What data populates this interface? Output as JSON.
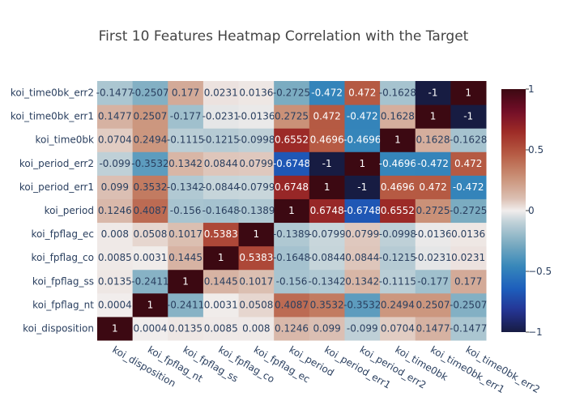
{
  "chart_data": {
    "type": "heatmap",
    "title": "First 10 Features Heatmap Correlation with the Target",
    "x": [
      "koi_disposition",
      "koi_fpflag_nt",
      "koi_fpflag_ss",
      "koi_fpflag_co",
      "koi_fpflag_ec",
      "koi_period",
      "koi_period_err1",
      "koi_period_err2",
      "koi_time0bk",
      "koi_time0bk_err1",
      "koi_time0bk_err2"
    ],
    "y": [
      "koi_disposition",
      "koi_fpflag_nt",
      "koi_fpflag_ss",
      "koi_fpflag_co",
      "koi_fpflag_ec",
      "koi_period",
      "koi_period_err1",
      "koi_period_err2",
      "koi_time0bk",
      "koi_time0bk_err1",
      "koi_time0bk_err2"
    ],
    "z": [
      [
        1,
        0.0004,
        0.0135,
        0.0085,
        0.008,
        0.1246,
        0.099,
        -0.099,
        0.0704,
        0.1477,
        -0.1477
      ],
      [
        0.0004,
        1,
        -0.2411,
        0.0031,
        0.0508,
        0.4087,
        0.3532,
        -0.3532,
        0.2494,
        0.2507,
        -0.2507
      ],
      [
        0.0135,
        -0.2411,
        1,
        0.1445,
        0.1017,
        -0.156,
        -0.1342,
        0.1342,
        -0.1115,
        -0.177,
        0.177
      ],
      [
        0.0085,
        0.0031,
        0.1445,
        1,
        0.5383,
        -0.1648,
        -0.0844,
        0.0844,
        -0.1215,
        -0.0231,
        0.0231
      ],
      [
        0.008,
        0.0508,
        0.1017,
        0.5383,
        1,
        -0.1389,
        -0.0799,
        0.0799,
        -0.0998,
        -0.0136,
        0.0136
      ],
      [
        0.1246,
        0.4087,
        -0.156,
        -0.1648,
        -0.1389,
        1,
        0.6748,
        -0.6748,
        0.6552,
        0.2725,
        -0.2725
      ],
      [
        0.099,
        0.3532,
        -0.1342,
        -0.0844,
        -0.0799,
        0.6748,
        1,
        -1,
        0.4696,
        0.472,
        -0.472
      ],
      [
        -0.099,
        -0.3532,
        0.1342,
        0.0844,
        0.0799,
        -0.6748,
        -1,
        1,
        -0.4696,
        -0.472,
        0.472
      ],
      [
        0.0704,
        0.2494,
        -0.1115,
        -0.1215,
        -0.0998,
        0.6552,
        0.4696,
        -0.4696,
        1,
        0.1628,
        -0.1628
      ],
      [
        0.1477,
        0.2507,
        -0.177,
        -0.0231,
        -0.0136,
        0.2725,
        0.472,
        -0.472,
        0.1628,
        1,
        -1
      ],
      [
        -0.1477,
        -0.2507,
        0.177,
        0.0231,
        0.0136,
        -0.2725,
        -0.472,
        0.472,
        -0.1628,
        -1,
        1
      ]
    ],
    "zmin": -1,
    "zmax": 1,
    "colorscale": "balance",
    "colorbar_ticks": [
      1,
      0.5,
      0,
      -0.5,
      -1
    ],
    "colorbar_tick_labels": [
      "1",
      "0.5",
      "0",
      "−0.5",
      "−1"
    ]
  }
}
